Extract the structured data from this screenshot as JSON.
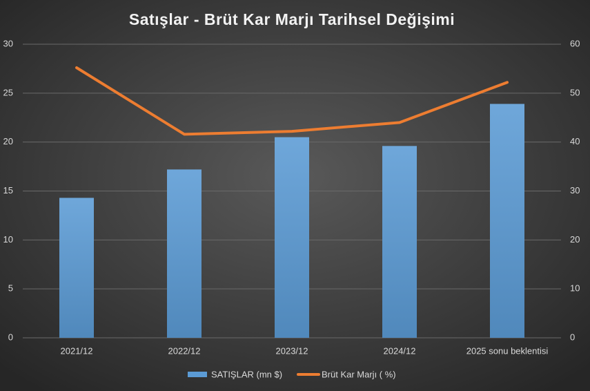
{
  "chart_data": {
    "type": "bar_line",
    "title": "Satışlar - Brüt Kar Marjı Tarihsel Değişimi",
    "categories": [
      "2021/12",
      "2022/12",
      "2023/12",
      "2024/12",
      "2025 sonu beklentisi"
    ],
    "series": [
      {
        "name": "SATIŞLAR (mn $)",
        "type": "bar",
        "color": "#5b9bd5",
        "values": [
          14.3,
          17.2,
          20.5,
          19.6,
          23.9
        ]
      },
      {
        "name": "Brüt Kar Marjı ( %)",
        "type": "line",
        "axis": "y2",
        "color": "#ed7d31",
        "values": [
          55.2,
          41.6,
          42.2,
          44.0,
          52.2
        ]
      }
    ],
    "ylim": [
      0,
      30
    ],
    "yticks": [
      0,
      5,
      10,
      15,
      20,
      25,
      30
    ],
    "y2lim": [
      0,
      60
    ],
    "y2ticks": [
      0,
      10,
      20,
      30,
      40,
      50,
      60
    ],
    "grid": true,
    "legend": "bottom"
  }
}
